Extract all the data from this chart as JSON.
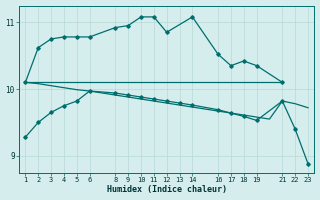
{
  "xlabel": "Humidex (Indice chaleur)",
  "bg_color": "#d5eeed",
  "grid_color": "#b8d8d5",
  "line_color": "#006e6e",
  "ylim": [
    8.75,
    11.25
  ],
  "yticks": [
    9,
    10,
    11
  ],
  "xticks": [
    1,
    2,
    3,
    4,
    5,
    6,
    8,
    9,
    10,
    11,
    12,
    13,
    14,
    16,
    17,
    18,
    19,
    21,
    22,
    23
  ],
  "line1_x": [
    1,
    2,
    3,
    4,
    5,
    6,
    8,
    9,
    10,
    11,
    12,
    14,
    16,
    17,
    18,
    19,
    21
  ],
  "line1_y": [
    10.1,
    10.62,
    10.75,
    10.78,
    10.78,
    10.78,
    10.92,
    10.95,
    11.08,
    11.08,
    10.85,
    11.08,
    10.52,
    10.35,
    10.42,
    10.35,
    10.1
  ],
  "line2_x": [
    1,
    2,
    3,
    4,
    5,
    6,
    7,
    8,
    9,
    10,
    11,
    12,
    13,
    14,
    15,
    16,
    17,
    18,
    19,
    21
  ],
  "line2_y": [
    10.1,
    10.1,
    10.1,
    10.1,
    10.1,
    10.1,
    10.1,
    10.1,
    10.1,
    10.1,
    10.1,
    10.1,
    10.1,
    10.1,
    10.1,
    10.1,
    10.1,
    10.1,
    10.1,
    10.1
  ],
  "line3_x": [
    1,
    2,
    3,
    4,
    5,
    6,
    7,
    8,
    9,
    10,
    11,
    12,
    13,
    14,
    15,
    16,
    17,
    18,
    19,
    20,
    21,
    22,
    23
  ],
  "line3_y": [
    10.1,
    10.08,
    10.05,
    10.02,
    9.99,
    9.97,
    9.94,
    9.91,
    9.88,
    9.85,
    9.82,
    9.79,
    9.76,
    9.73,
    9.7,
    9.67,
    9.64,
    9.61,
    9.58,
    9.55,
    9.82,
    9.78,
    9.72
  ],
  "line4_x": [
    1,
    2,
    3,
    4,
    5,
    6,
    8,
    9,
    10,
    11,
    12,
    13,
    14,
    16,
    17,
    18,
    19,
    21,
    22,
    23
  ],
  "line4_y": [
    9.28,
    9.5,
    9.65,
    9.75,
    9.82,
    9.97,
    9.94,
    9.91,
    9.88,
    9.85,
    9.82,
    9.79,
    9.76,
    9.69,
    9.64,
    9.59,
    9.53,
    9.82,
    9.4,
    8.88
  ]
}
